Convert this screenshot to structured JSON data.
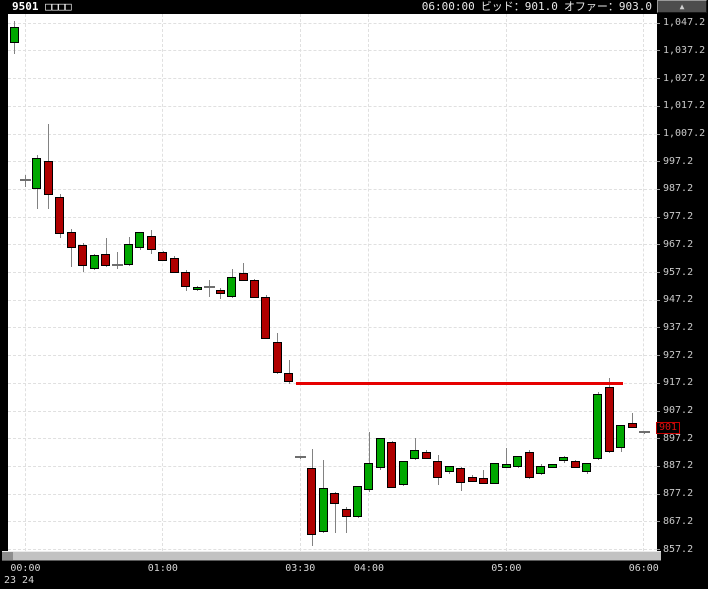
{
  "header": {
    "symbol_code": "9501",
    "symbol_name": "□□□□",
    "quote_time": "06:00:00",
    "bid_label": "ビッド：",
    "bid_value": "901.0",
    "offer_label": "オファー：",
    "offer_value": "903.0",
    "collapse_icon": "▲"
  },
  "y_axis": {
    "labels": [
      "1,047.2",
      "1,037.2",
      "1,027.2",
      "1,017.2",
      "1,007.2",
      "997.2",
      "987.2",
      "977.2",
      "967.2",
      "957.2",
      "947.2",
      "937.2",
      "927.2",
      "917.2",
      "907.2",
      "897.2",
      "887.2",
      "877.2",
      "867.2",
      "857.2"
    ],
    "max": 1047.2,
    "min": 857.2,
    "step": 10
  },
  "x_axis": {
    "ticks": [
      {
        "label": "00:00",
        "index": 1
      },
      {
        "label": "01:00",
        "index": 13
      },
      {
        "label": "03:30",
        "index": 25
      },
      {
        "label": "04:00",
        "index": 31
      },
      {
        "label": "05:00",
        "index": 43
      },
      {
        "label": "06:00",
        "index": 55
      }
    ],
    "date_label": "23 24"
  },
  "price_marker": {
    "label": "901",
    "price": 901
  },
  "chart_data": {
    "type": "candlestick",
    "interval": "5m",
    "title": "9501 intraday 5-minute candles",
    "ylim": [
      857.2,
      1047.2
    ],
    "grid": true,
    "columns": [
      "time",
      "open",
      "high",
      "low",
      "close"
    ],
    "candles": [
      [
        "23:55",
        1040,
        1048,
        1036,
        1046
      ],
      [
        "00:00",
        990.5,
        992.5,
        988,
        990.5
      ],
      [
        "00:05",
        987.5,
        999.5,
        980,
        998.5
      ],
      [
        "00:10",
        997.5,
        1011,
        980,
        985
      ],
      [
        "00:15",
        984.5,
        985.5,
        969.5,
        971
      ],
      [
        "00:20",
        972,
        973,
        959,
        966
      ],
      [
        "00:25",
        967,
        968,
        957.5,
        959.5
      ],
      [
        "00:30",
        958.5,
        964,
        958,
        963.5
      ],
      [
        "00:35",
        964,
        969.5,
        959,
        959.5
      ],
      [
        "00:40",
        960,
        964.5,
        958.5,
        960
      ],
      [
        "00:45",
        960,
        970,
        959.5,
        967.5
      ],
      [
        "00:50",
        966,
        972,
        965.5,
        972
      ],
      [
        "00:55",
        970.5,
        972.5,
        964,
        965.5
      ],
      [
        "01:00",
        964.5,
        965,
        961.5,
        961.5
      ],
      [
        "01:05",
        962.5,
        963,
        957,
        957
      ],
      [
        "01:10",
        957.5,
        958,
        950.5,
        952
      ],
      [
        "01:15",
        951,
        952.5,
        950.5,
        952
      ],
      [
        "01:20",
        952,
        954.5,
        948.5,
        952
      ],
      [
        "01:25",
        951,
        951.5,
        947.5,
        949.5
      ],
      [
        "01:30",
        948.5,
        958.5,
        948,
        955.5
      ],
      [
        "01:35",
        957,
        960.5,
        954,
        954
      ],
      [
        "01:40",
        954.5,
        955,
        948,
        948
      ],
      [
        "01:45",
        948.5,
        949,
        933,
        933
      ],
      [
        "01:50",
        932,
        935.5,
        920.5,
        921
      ],
      [
        "01:55",
        921,
        925.5,
        917,
        917.5
      ],
      [
        "03:30",
        890.5,
        891,
        890,
        890.5
      ],
      [
        "03:35",
        886.5,
        893.5,
        858.5,
        862.5
      ],
      [
        "03:40",
        863.5,
        889.5,
        863,
        879.5
      ],
      [
        "03:45",
        877.5,
        878,
        863,
        873.5
      ],
      [
        "03:50",
        872,
        872.5,
        863,
        869
      ],
      [
        "03:55",
        869,
        880,
        868.5,
        880
      ],
      [
        "04:00",
        878.5,
        899.5,
        878,
        888.5
      ],
      [
        "04:05",
        886.5,
        897.5,
        886,
        897.5
      ],
      [
        "04:10",
        896,
        896.5,
        879.5,
        879.5
      ],
      [
        "04:15",
        880.5,
        889,
        880,
        889
      ],
      [
        "04:20",
        890,
        897.5,
        889.5,
        893
      ],
      [
        "04:25",
        892.5,
        893,
        890,
        890
      ],
      [
        "04:30",
        889,
        891.5,
        880.5,
        883
      ],
      [
        "04:35",
        885,
        887.5,
        884.5,
        887.5
      ],
      [
        "04:40",
        886.5,
        887,
        878.5,
        881
      ],
      [
        "04:45",
        883.5,
        884,
        881.5,
        881.5
      ],
      [
        "04:50",
        883,
        886,
        881,
        881
      ],
      [
        "04:55",
        881,
        888.5,
        881,
        888.5
      ],
      [
        "05:00",
        886.5,
        894,
        886.5,
        888
      ],
      [
        "05:05",
        887,
        891,
        886.5,
        891
      ],
      [
        "05:10",
        892.5,
        893,
        882.5,
        883
      ],
      [
        "05:15",
        884.5,
        888,
        884,
        887.5
      ],
      [
        "05:20",
        886.5,
        888,
        886.5,
        888
      ],
      [
        "05:25",
        889,
        891,
        888.5,
        890.5
      ],
      [
        "05:30",
        889,
        889.5,
        886.5,
        886.5
      ],
      [
        "05:35",
        885,
        888.5,
        884.5,
        888.5
      ],
      [
        "05:40",
        890,
        914,
        889.5,
        913.5
      ],
      [
        "05:45",
        916,
        919,
        892,
        892.5
      ],
      [
        "05:50",
        894,
        902,
        892.5,
        902
      ],
      [
        "05:55",
        903,
        906.5,
        901,
        901
      ],
      [
        "06:00",
        899.5,
        900,
        899,
        899.5
      ]
    ],
    "support_line": {
      "price": 917.2,
      "from_index": 24.6,
      "to_index": 53.2
    },
    "colors": {
      "up": "#00a800",
      "down": "#b00000",
      "wick": "#828282",
      "line": "#e60000",
      "marker": "#c40000",
      "grid": "#e0e0e0",
      "plot_bg": "#ffffff",
      "frame_bg": "#000000"
    }
  }
}
